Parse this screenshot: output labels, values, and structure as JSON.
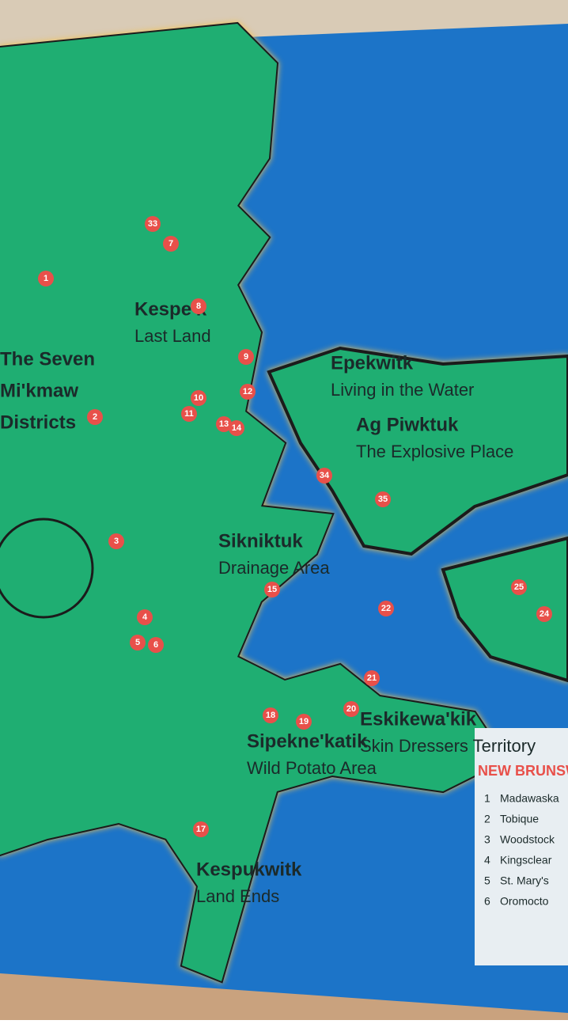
{
  "map": {
    "districts_label": [
      "The Seven",
      "Mi'kmaw",
      "Districts"
    ],
    "regions": [
      {
        "name": "Kespe'k",
        "meaning": "Last Land"
      },
      {
        "name": "Epekwitk",
        "meaning": "Living in the Water"
      },
      {
        "name": "Ag Piwktuk",
        "meaning": "The Explosive Place"
      },
      {
        "name": "Sikniktuk",
        "meaning": "Drainage Area"
      },
      {
        "name": "Eskikewa'kik",
        "meaning": "Skin Dressers Territory"
      },
      {
        "name": "Sipekne'katik",
        "meaning": "Wild Potato Area"
      },
      {
        "name": "Kespukwitk",
        "meaning": "Land Ends"
      }
    ],
    "markers": [
      "33",
      "7",
      "1",
      "8",
      "9",
      "10",
      "11",
      "12",
      "2",
      "13",
      "14",
      "34",
      "35",
      "3",
      "15",
      "22",
      "4",
      "5",
      "6",
      "24",
      "25",
      "20",
      "21",
      "18",
      "19",
      "17"
    ],
    "side_panel": {
      "heading": "NEW BRUNSWICK",
      "list": [
        {
          "num": "1",
          "name": "Madawaska"
        },
        {
          "num": "2",
          "name": "Tobique"
        },
        {
          "num": "3",
          "name": "Woodstock"
        },
        {
          "num": "4",
          "name": "Kingsclear"
        },
        {
          "num": "5",
          "name": "St. Mary's"
        },
        {
          "num": "6",
          "name": "Oromocto"
        }
      ]
    }
  }
}
